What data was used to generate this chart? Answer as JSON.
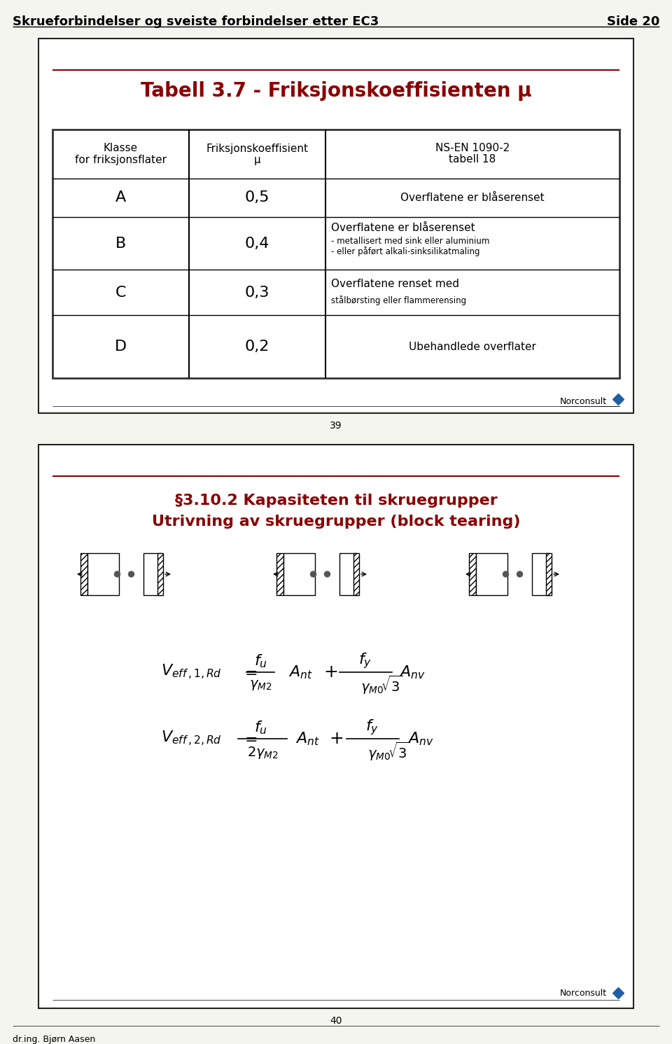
{
  "page_title_left": "Skrueforbindelser og sveiste forbindelser etter EC3",
  "page_title_right": "Side 20",
  "footer_text": "dr.ing. Bjørn Aasen",
  "panel1": {
    "title": "Tabell 3.7 - Friksjonskoeffisienten μ",
    "title_color": "#8B0000",
    "header_col1_line1": "Klasse",
    "header_col1_line2": "for friksjonsflater",
    "header_col2_line1": "Friksjonskoeffisient",
    "header_col2_line2": "μ",
    "header_col3_line1": "NS-EN 1090-2",
    "header_col3_line2": "tabell 18",
    "rows": [
      {
        "class": "A",
        "value": "0,5",
        "description_main": "Overflatene er blåserenset",
        "description_sub": []
      },
      {
        "class": "B",
        "value": "0,4",
        "description_main": "Overflatene er blåserenset",
        "description_sub": [
          "- metallisert med sink eller aluminium",
          "- eller påført alkali-sinksilikatmaling"
        ]
      },
      {
        "class": "C",
        "value": "0,3",
        "description_main": "Overflatene renset med",
        "description_sub": [
          "stålbørsting eller flammerensing"
        ]
      },
      {
        "class": "D",
        "value": "0,2",
        "description_main": "Ubehandlede overflater",
        "description_sub": []
      }
    ],
    "page_num": "39"
  },
  "panel2": {
    "title_line1": "§3.10.2 Kapasiteten til skruegrupper",
    "title_line2": "Utrivning av skruegrupper (block tearing)",
    "title_color": "#8B0000",
    "page_num": "40"
  },
  "norconsult_text": "Norconsult",
  "colors": {
    "background": "#f5f5f0",
    "panel_bg": "#ffffff",
    "panel_border": "#222222",
    "table_border": "#333333",
    "accent_line": "#8B0000",
    "text": "#000000",
    "title_color": "#8B0000",
    "header_line": "#8B0000"
  }
}
